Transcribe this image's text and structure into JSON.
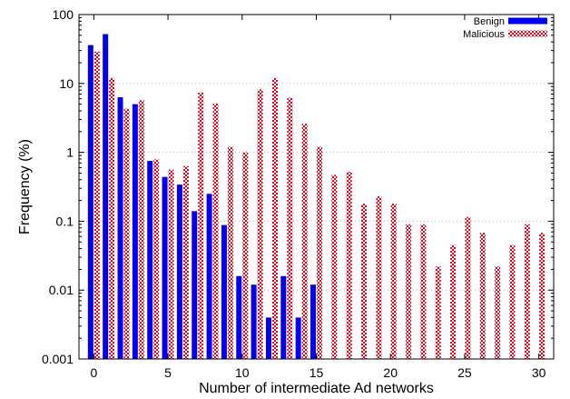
{
  "chart_data": {
    "type": "bar",
    "xlabel": "Number of intermediate Ad networks",
    "ylabel": "Frequency (%)",
    "yscale": "log",
    "ylim": [
      0.001,
      100
    ],
    "xlim": [
      -1,
      31
    ],
    "xticks": [
      "0",
      "5",
      "10",
      "15",
      "20",
      "25",
      "30"
    ],
    "yticks": [
      "0.001",
      "0.01",
      "0.1",
      "1",
      "10",
      "100"
    ],
    "grid": "horizontal dotted",
    "legend_position": "top-right",
    "x": [
      0,
      1,
      2,
      3,
      4,
      5,
      6,
      7,
      8,
      9,
      10,
      11,
      12,
      13,
      14,
      15,
      16,
      17,
      18,
      19,
      20,
      21,
      22,
      23,
      24,
      25,
      26,
      27,
      28,
      29,
      30
    ],
    "series": [
      {
        "name": "Benign",
        "color": "#0000ee",
        "pattern": "solid",
        "values": [
          36,
          52,
          6.3,
          5.0,
          0.75,
          0.44,
          0.34,
          0.14,
          0.25,
          0.088,
          0.016,
          0.012,
          0.004,
          0.016,
          0.004,
          0.012,
          null,
          null,
          null,
          null,
          null,
          null,
          null,
          null,
          null,
          null,
          null,
          null,
          null,
          null,
          null
        ]
      },
      {
        "name": "Malicious",
        "color": "#e8001a",
        "pattern": "checkered",
        "values": [
          29,
          12,
          4.3,
          5.7,
          0.79,
          0.56,
          0.63,
          7.4,
          5.1,
          1.2,
          1.0,
          8.2,
          12,
          6.2,
          2.6,
          1.2,
          0.47,
          0.52,
          0.18,
          0.23,
          0.18,
          0.09,
          0.09,
          0.022,
          0.045,
          0.115,
          0.068,
          0.022,
          0.045,
          0.09,
          0.068
        ]
      }
    ]
  }
}
